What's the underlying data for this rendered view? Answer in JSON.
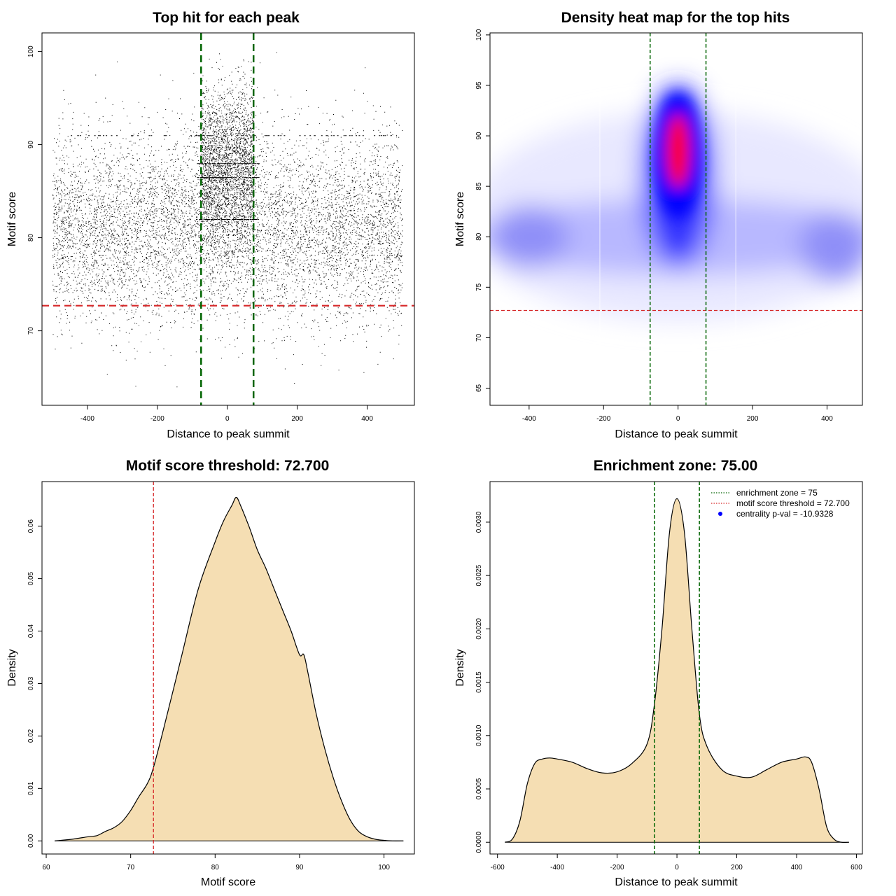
{
  "colors": {
    "threshold_line": "#d62728",
    "zone_line": "#006400",
    "density_fill": "#f5deb3",
    "point": "#000000",
    "heat_low": "#ffffff",
    "heat_mid": "#0000ff",
    "heat_high": "#ff0000",
    "legend_dot": "#0000ff"
  },
  "chart_data": [
    {
      "type": "scatter",
      "title": "Top hit for each peak",
      "xlabel": "Distance to peak summit",
      "ylabel": "Motif score",
      "xlim": [
        -530,
        535
      ],
      "ylim": [
        62,
        102
      ],
      "xticks": [
        -400,
        -200,
        0,
        200,
        400
      ],
      "yticks": [
        70,
        80,
        90,
        100
      ],
      "threshold": 72.7,
      "zone": [
        -75,
        75
      ],
      "point_clouds": [
        {
          "x_center": 0,
          "x_spread": 500,
          "y_mean": 81,
          "y_sd": 5,
          "count": 9000
        },
        {
          "x_center": 0,
          "x_spread": 75,
          "y_mean": 88,
          "y_sd": 4,
          "count": 2600
        }
      ],
      "streaks_y": [
        91,
        88,
        86.5,
        82
      ]
    },
    {
      "type": "heatmap",
      "title": "Density heat map for the top hits",
      "xlabel": "Distance to peak summit",
      "ylabel": "Motif score",
      "xlim": [
        -505,
        495
      ],
      "ylim": [
        63.3,
        100.2
      ],
      "xticks": [
        -400,
        -200,
        0,
        200,
        400
      ],
      "yticks": [
        65,
        70,
        75,
        80,
        85,
        90,
        95,
        100
      ],
      "threshold": 72.7,
      "zone": [
        -75,
        75
      ]
    },
    {
      "type": "area",
      "title": "Motif score threshold: 72.700",
      "xlabel": "Motif score",
      "ylabel": "Density",
      "xlim": [
        59.5,
        103.6
      ],
      "ylim": [
        -0.0025,
        0.0685
      ],
      "xticks": [
        60,
        70,
        80,
        90,
        100
      ],
      "yticks": [
        0.0,
        0.01,
        0.02,
        0.03,
        0.04,
        0.05,
        0.06
      ],
      "ytick_labels": [
        "0.00",
        "0.01",
        "0.02",
        "0.03",
        "0.04",
        "0.05",
        "0.06"
      ],
      "threshold": 72.7,
      "x": [
        61,
        63,
        65,
        66,
        67,
        68,
        69,
        70,
        71,
        72,
        72.7,
        74,
        76,
        78,
        80,
        81,
        82,
        82.5,
        83,
        84,
        85,
        86,
        87,
        88,
        89,
        90,
        90.5,
        91,
        92,
        93,
        94,
        95,
        96,
        97,
        98,
        99,
        100,
        101,
        102.3
      ],
      "y": [
        0.0,
        0.0003,
        0.0008,
        0.001,
        0.0018,
        0.0025,
        0.0037,
        0.0058,
        0.0085,
        0.011,
        0.014,
        0.022,
        0.035,
        0.048,
        0.057,
        0.061,
        0.064,
        0.0655,
        0.064,
        0.06,
        0.0555,
        0.052,
        0.048,
        0.044,
        0.04,
        0.0355,
        0.0355,
        0.032,
        0.024,
        0.0175,
        0.012,
        0.0075,
        0.004,
        0.0018,
        0.0008,
        0.0003,
        0.0001,
        0.0,
        0.0
      ]
    },
    {
      "type": "area",
      "title": "Enrichment zone: 75.00",
      "xlabel": "Distance to peak summit",
      "ylabel": "Density",
      "xlim": [
        -625,
        620
      ],
      "ylim": [
        -0.00011,
        0.00338
      ],
      "xticks": [
        -600,
        -400,
        -200,
        0,
        200,
        400,
        600
      ],
      "yticks": [
        0.0,
        0.0005,
        0.001,
        0.0015,
        0.002,
        0.0025,
        0.003
      ],
      "ytick_labels": [
        "0.0000",
        "0.0005",
        "0.0010",
        "0.0015",
        "0.0020",
        "0.0025",
        "0.0030"
      ],
      "zone": [
        -75,
        75
      ],
      "x": [
        -575,
        -550,
        -525,
        -500,
        -475,
        -450,
        -425,
        -400,
        -350,
        -300,
        -250,
        -200,
        -150,
        -100,
        -75,
        -50,
        -25,
        0,
        25,
        50,
        75,
        100,
        150,
        200,
        250,
        300,
        350,
        400,
        430,
        450,
        475,
        500,
        525,
        550,
        575
      ],
      "y": [
        0.0,
        3e-05,
        0.0002,
        0.00055,
        0.00074,
        0.00078,
        0.00079,
        0.00078,
        0.00075,
        0.00069,
        0.00065,
        0.00066,
        0.00074,
        0.00092,
        0.0013,
        0.002,
        0.0029,
        0.00322,
        0.0029,
        0.002,
        0.0012,
        0.0009,
        0.00068,
        0.00062,
        0.00061,
        0.00068,
        0.00075,
        0.00078,
        0.0008,
        0.00075,
        0.0005,
        0.00015,
        3e-05,
        0.0,
        0.0
      ],
      "legend": {
        "position": "top-right",
        "entries": [
          {
            "label": "enrichment zone = 75",
            "style": "dotted",
            "color": "#006400"
          },
          {
            "label": "motif score threshold = 72.700",
            "style": "dotted",
            "color": "#d62728"
          },
          {
            "label": "centrality p-val = -10.9328",
            "style": "dot",
            "color": "#0000ff"
          }
        ]
      }
    }
  ]
}
